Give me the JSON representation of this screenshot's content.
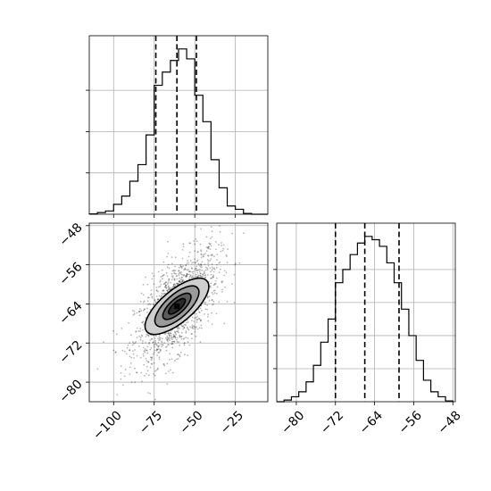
{
  "chart_data": {
    "type": "corner",
    "parameters": [
      {
        "index": 0,
        "range": [
          -115,
          -5
        ],
        "ticks": [
          -100,
          -75,
          -50,
          -25
        ],
        "tick_labels": [
          "−100",
          "−75",
          "−50",
          "−25"
        ],
        "quantiles": [
          -74,
          -61,
          -49
        ],
        "histogram": {
          "bin_edges": [
            -115,
            -110,
            -105,
            -100,
            -95,
            -90,
            -85,
            -80,
            -75,
            -70,
            -65,
            -60,
            -55,
            -50,
            -45,
            -40,
            -35,
            -30,
            -25,
            -20,
            -15,
            -10,
            -5
          ],
          "counts": [
            0.002,
            0.01,
            0.02,
            0.06,
            0.11,
            0.2,
            0.3,
            0.48,
            0.78,
            0.86,
            0.93,
            1.0,
            0.94,
            0.72,
            0.56,
            0.33,
            0.16,
            0.05,
            0.03,
            0.005,
            0.0,
            0.0
          ]
        }
      },
      {
        "index": 1,
        "range": [
          -84,
          -47.5
        ],
        "ticks": [
          -80,
          -72,
          -64,
          -56,
          -48
        ],
        "tick_labels": [
          "−80",
          "−72",
          "−64",
          "−56",
          "−48"
        ],
        "quantiles": [
          -72,
          -66,
          -59
        ],
        "histogram": {
          "bin_edges": [
            -84,
            -82.5,
            -81,
            -79.5,
            -78,
            -76.5,
            -75,
            -73.5,
            -72,
            -70.5,
            -69,
            -67.5,
            -66,
            -64.5,
            -63,
            -61.5,
            -60,
            -58.5,
            -57,
            -55.5,
            -54,
            -52.5,
            -51,
            -49.5,
            -48
          ],
          "counts": [
            0.0,
            0.01,
            0.03,
            0.06,
            0.12,
            0.22,
            0.36,
            0.5,
            0.72,
            0.8,
            0.89,
            0.96,
            1.0,
            0.98,
            0.94,
            0.84,
            0.72,
            0.56,
            0.4,
            0.25,
            0.13,
            0.06,
            0.03,
            0.005
          ]
        }
      }
    ],
    "joint": {
      "x_param": 0,
      "y_param": 1,
      "center": [
        -61,
        -64.5
      ],
      "contour_levels": [
        {
          "rx": 12,
          "ry": 4.5,
          "angle_deg": 42,
          "shade": "#2a2a2a"
        },
        {
          "rx": 20,
          "ry": 8.0,
          "angle_deg": 42,
          "shade": "#5c5c5c"
        },
        {
          "rx": 31,
          "ry": 13.0,
          "angle_deg": 42,
          "shade": "#9a9a9a"
        },
        {
          "rx": 44,
          "ry": 18.0,
          "angle_deg": 40,
          "shade": "#cfcfcf"
        }
      ],
      "scatter_color": "#000000"
    },
    "grid": true
  }
}
